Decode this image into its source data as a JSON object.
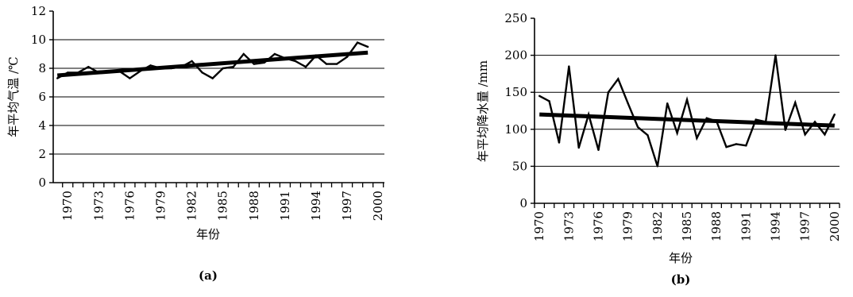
{
  "chart_data": [
    {
      "type": "line",
      "caption": "(a)",
      "xlabel": "年份",
      "ylabel": "年平均气温 /℃",
      "ylim": [
        0,
        12
      ],
      "yticks": [
        0,
        2,
        4,
        6,
        8,
        10,
        12
      ],
      "xtick_labels": [
        "1970",
        "1973",
        "1976",
        "1979",
        "1982",
        "1985",
        "1988",
        "1991",
        "1994",
        "1997",
        "2000"
      ],
      "xlim": [
        1969,
        2000
      ],
      "grid": "horizontal",
      "series": [
        {
          "x": [
            1969,
            1970,
            1971,
            1972,
            1973,
            1974,
            1975,
            1976,
            1977,
            1978,
            1979,
            1980,
            1981,
            1982,
            1983,
            1984,
            1985,
            1986,
            1987,
            1988,
            1989,
            1990,
            1991,
            1992,
            1993,
            1994,
            1995,
            1996,
            1997,
            1998,
            1999
          ],
          "y": [
            7.3,
            7.7,
            7.7,
            8.1,
            7.7,
            7.8,
            7.8,
            7.3,
            7.8,
            8.2,
            8.0,
            8.0,
            8.1,
            8.5,
            7.7,
            7.3,
            8.0,
            8.1,
            9.0,
            8.3,
            8.4,
            9.0,
            8.7,
            8.5,
            8.1,
            8.9,
            8.3,
            8.3,
            8.8,
            9.8,
            9.5
          ]
        }
      ],
      "trend": {
        "x": [
          1969,
          1999
        ],
        "y": [
          7.5,
          9.1
        ]
      }
    },
    {
      "type": "line",
      "caption": "(b)",
      "xlabel": "年份",
      "ylabel": "年平均降水量 /mm",
      "ylim": [
        0,
        250
      ],
      "yticks": [
        0,
        50,
        100,
        150,
        200,
        250
      ],
      "xtick_labels": [
        "1970",
        "1973",
        "1976",
        "1979",
        "1982",
        "1985",
        "1988",
        "1991",
        "1994",
        "1997",
        "2000"
      ],
      "xlim": [
        1970,
        2000
      ],
      "grid": "horizontal",
      "series": [
        {
          "x": [
            1970,
            1971,
            1972,
            1973,
            1974,
            1975,
            1976,
            1977,
            1978,
            1979,
            1980,
            1981,
            1982,
            1983,
            1984,
            1985,
            1986,
            1987,
            1988,
            1989,
            1990,
            1991,
            1992,
            1993,
            1994,
            1995,
            1996,
            1997,
            1998,
            1999,
            2000
          ],
          "y": [
            145,
            138,
            82,
            185,
            75,
            120,
            72,
            150,
            168,
            135,
            103,
            92,
            50,
            135,
            95,
            140,
            88,
            115,
            111,
            76,
            80,
            78,
            113,
            110,
            200,
            99,
            136,
            93,
            110,
            93,
            120
          ]
        }
      ],
      "trend": {
        "x": [
          1970,
          2000
        ],
        "y": [
          120,
          105
        ]
      }
    }
  ]
}
